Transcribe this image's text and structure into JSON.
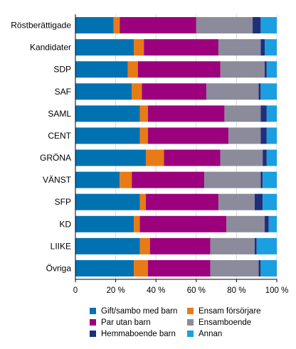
{
  "chart_data": {
    "type": "bar",
    "orientation": "horizontal",
    "stacked": true,
    "categories": [
      "Röstberättigade",
      "Kandidater",
      "SDP",
      "SAF",
      "SAML",
      "CENT",
      "GRÖNA",
      "VÄNST",
      "SFP",
      "KD",
      "LIIKE",
      "Övriga"
    ],
    "series": [
      {
        "name": "Gift/sambo med barn",
        "color": "#0072b2",
        "values": [
          19,
          29,
          26,
          28,
          32,
          32,
          35,
          22,
          32,
          29,
          32,
          29
        ]
      },
      {
        "name": "Ensam försörjare",
        "color": "#e87b15",
        "values": [
          3,
          5,
          5,
          5,
          4,
          4,
          9,
          6,
          3,
          3,
          5,
          7
        ]
      },
      {
        "name": "Par utan barn",
        "color": "#9c007c",
        "values": [
          38,
          37,
          41,
          32,
          38,
          40,
          28,
          36,
          36,
          43,
          30,
          31
        ]
      },
      {
        "name": "Ensamboende",
        "color": "#8b8b9b",
        "values": [
          28,
          21,
          22,
          26,
          18,
          16,
          21,
          28,
          18,
          19,
          22,
          24
        ]
      },
      {
        "name": "Hemmaboende barn",
        "color": "#1f2f7a",
        "values": [
          4,
          2,
          1,
          1,
          3,
          3,
          2,
          1,
          4,
          2,
          1,
          1
        ]
      },
      {
        "name": "Annan",
        "color": "#1a9fe0",
        "values": [
          8,
          6,
          5,
          8,
          5,
          5,
          5,
          7,
          7,
          4,
          10,
          8
        ]
      }
    ],
    "xaxis": {
      "ticks": [
        "0",
        "20 %",
        "40 %",
        "60 %",
        "80 %",
        "100 %"
      ],
      "range": [
        0,
        100
      ]
    },
    "grid": true,
    "legend_position": "bottom"
  }
}
